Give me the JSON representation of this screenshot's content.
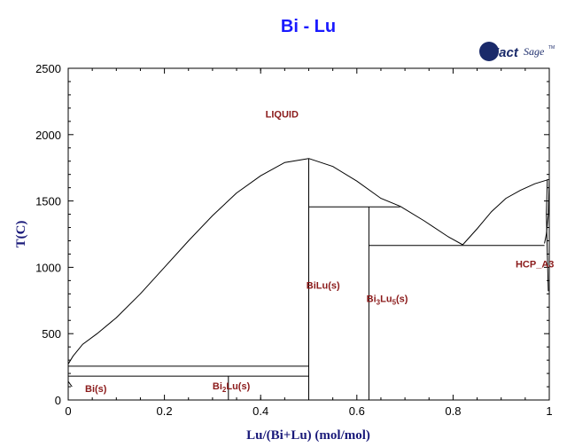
{
  "logo": {
    "brand": "FactSage",
    "brand_a": "Fact",
    "brand_b": "Sage",
    "mark": "TM"
  },
  "chart_data": {
    "type": "line",
    "title": "Bi - Lu",
    "xlabel": "Lu/(Bi+Lu) (mol/mol)",
    "ylabel": "T(C)",
    "xlim": [
      0,
      1
    ],
    "ylim": [
      0,
      2500
    ],
    "xticks": [
      "0",
      "0.2",
      "0.4",
      "0.6",
      "0.8",
      "1"
    ],
    "xtick_values": [
      0,
      0.2,
      0.4,
      0.6,
      0.8,
      1
    ],
    "yticks": [
      "0",
      "500",
      "1000",
      "1500",
      "2000",
      "2500"
    ],
    "ytick_values": [
      0,
      500,
      1000,
      1500,
      2000,
      2500
    ],
    "grid": false,
    "series": [
      {
        "values": [
          [
            0,
            271
          ],
          [
            0.01,
            330
          ],
          [
            0.03,
            420
          ],
          [
            0.06,
            500
          ],
          [
            0.1,
            620
          ],
          [
            0.15,
            800
          ],
          [
            0.2,
            1000
          ],
          [
            0.25,
            1200
          ],
          [
            0.3,
            1390
          ],
          [
            0.35,
            1560
          ],
          [
            0.4,
            1690
          ],
          [
            0.45,
            1790
          ],
          [
            0.5,
            1820
          ]
        ]
      },
      {
        "values": [
          [
            0.5,
            1820
          ],
          [
            0.55,
            1760
          ],
          [
            0.6,
            1650
          ],
          [
            0.65,
            1520
          ],
          [
            0.69,
            1460
          ]
        ]
      },
      {
        "values": [
          [
            0.69,
            1460
          ],
          [
            0.74,
            1350
          ],
          [
            0.79,
            1230
          ],
          [
            0.82,
            1170
          ]
        ]
      },
      {
        "values": [
          [
            0.82,
            1170
          ],
          [
            0.85,
            1290
          ],
          [
            0.88,
            1420
          ],
          [
            0.91,
            1520
          ],
          [
            0.94,
            1580
          ],
          [
            0.97,
            1630
          ],
          [
            1.0,
            1663
          ]
        ]
      },
      {
        "values": [
          [
            0.996,
            1663
          ],
          [
            0.994,
            1400
          ],
          [
            0.996,
            1100
          ],
          [
            0.998,
            820
          ]
        ]
      },
      {
        "values": [
          [
            0.99,
            1180
          ],
          [
            0.994,
            1250
          ],
          [
            0.998,
            1400
          ],
          [
            1.0,
            1663
          ]
        ]
      },
      {
        "values": [
          [
            0,
            255
          ],
          [
            0.5,
            255
          ]
        ]
      },
      {
        "values": [
          [
            0,
            180
          ],
          [
            0.5,
            180
          ]
        ]
      },
      {
        "values": [
          [
            0.5,
            0
          ],
          [
            0.5,
            1820
          ]
        ]
      },
      {
        "values": [
          [
            0.5,
            1455
          ],
          [
            0.69,
            1455
          ]
        ]
      },
      {
        "values": [
          [
            0.625,
            0
          ],
          [
            0.625,
            1455
          ]
        ]
      },
      {
        "values": [
          [
            0.625,
            1165
          ],
          [
            0.99,
            1165
          ]
        ]
      },
      {
        "values": [
          [
            0.333,
            0
          ],
          [
            0.333,
            180
          ]
        ]
      },
      {
        "values": [
          [
            0,
            140
          ],
          [
            0.008,
            100
          ]
        ]
      }
    ],
    "annotations": [
      {
        "text": "LIQUID",
        "x": 0.41,
        "y": 2130
      },
      {
        "text": "BiLu(s)",
        "x": 0.495,
        "y": 840
      },
      {
        "text": "Bi3Lu5(s)",
        "x": 0.62,
        "y": 740
      },
      {
        "text": "HCP_A3",
        "x": 0.93,
        "y": 1000
      },
      {
        "text": "Bi(s)",
        "x": 0.035,
        "y": 60
      },
      {
        "text": "Bi2Lu(s)",
        "x": 0.3,
        "y": 80
      }
    ],
    "label_parts": {
      "bi3lu5": {
        "a": "Bi",
        "sub1": "3",
        "b": "Lu",
        "sub2": "5",
        "c": "(s)"
      },
      "bi2lu": {
        "a": "Bi",
        "sub1": "2",
        "b": "Lu(s)"
      }
    },
    "colors": {
      "title": "#1a1aff",
      "axis_label": "#1a1a7a",
      "phase_label": "#8b1a1a",
      "line": "#000000"
    }
  }
}
